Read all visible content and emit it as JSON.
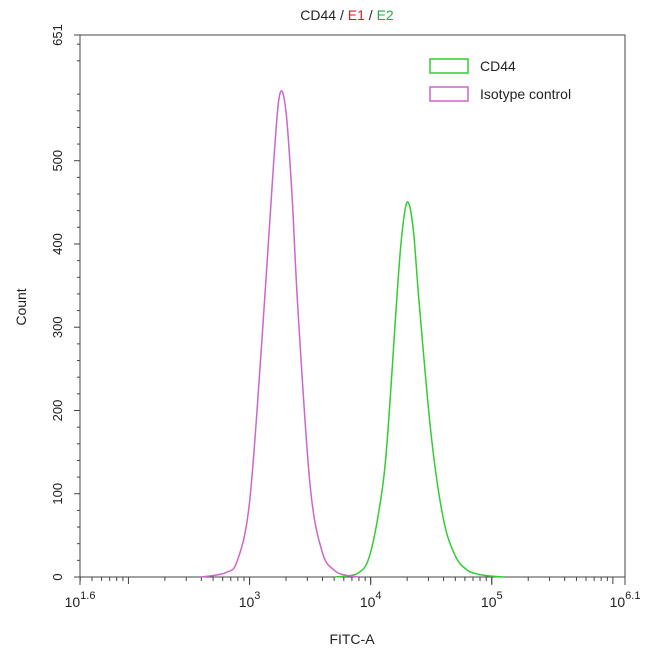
{
  "chart_data": {
    "type": "line",
    "title_parts": [
      {
        "text": "CD44",
        "color": "#222222"
      },
      {
        "text": " / ",
        "color": "#222222"
      },
      {
        "text": "E1",
        "color": "#cc2222"
      },
      {
        "text": " / ",
        "color": "#222222"
      },
      {
        "text": "E2",
        "color": "#22aa44"
      }
    ],
    "xlabel": "FITC-A",
    "ylabel": "Count",
    "x_scale": "log10",
    "xlim": [
      1.6,
      6.1
    ],
    "ylim": [
      0,
      651
    ],
    "x_ticks": [
      {
        "exp": 1.6,
        "base": "10",
        "sup": "1.6"
      },
      {
        "exp": 3,
        "base": "10",
        "sup": "3"
      },
      {
        "exp": 4,
        "base": "10",
        "sup": "4"
      },
      {
        "exp": 5,
        "base": "10",
        "sup": "5"
      },
      {
        "exp": 6.1,
        "base": "10",
        "sup": "6.1"
      }
    ],
    "y_ticks": [
      0,
      100,
      200,
      300,
      400,
      500,
      651
    ],
    "legend_position": "top-right",
    "series": [
      {
        "name": "CD44",
        "color": "#33cc33",
        "x": [
          3.7,
          3.9,
          4.0,
          4.1,
          4.15,
          4.2,
          4.25,
          4.3,
          4.35,
          4.4,
          4.5,
          4.6,
          4.7,
          4.8,
          4.9,
          5.0,
          5.1
        ],
        "y": [
          0,
          5,
          30,
          110,
          190,
          300,
          400,
          450,
          420,
          330,
          170,
          70,
          25,
          8,
          3,
          1,
          0
        ]
      },
      {
        "name": "Isotype control",
        "color": "#cc66cc",
        "x": [
          2.6,
          2.8,
          2.9,
          3.0,
          3.1,
          3.2,
          3.25,
          3.3,
          3.35,
          3.4,
          3.5,
          3.6,
          3.7,
          3.8,
          3.9
        ],
        "y": [
          0,
          5,
          20,
          90,
          280,
          500,
          580,
          560,
          460,
          320,
          110,
          30,
          8,
          2,
          0
        ]
      }
    ]
  }
}
